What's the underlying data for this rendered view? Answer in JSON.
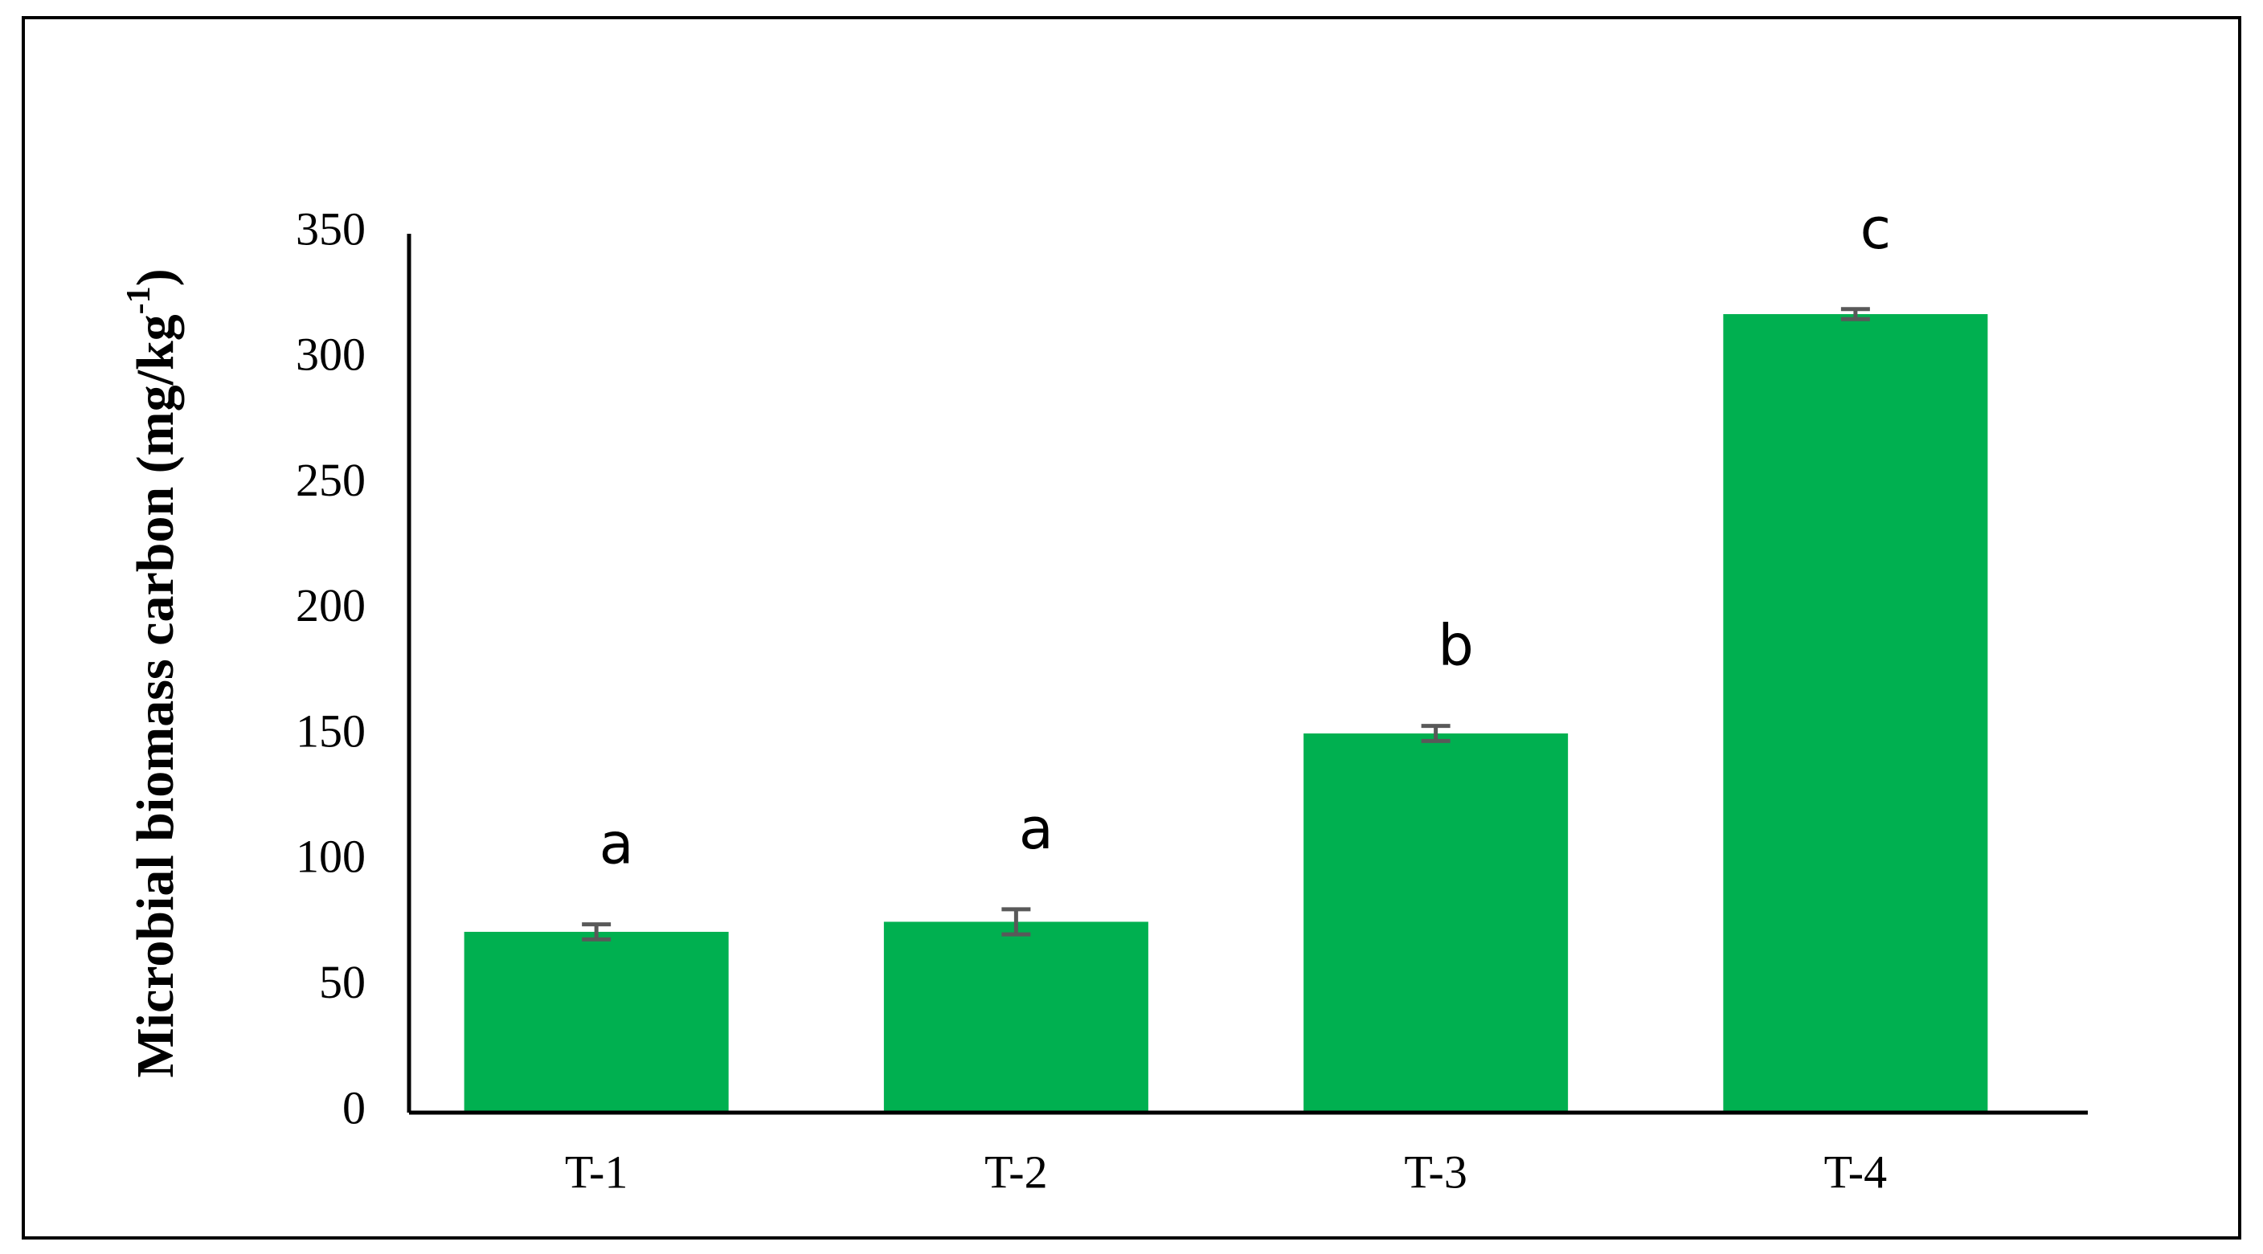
{
  "chart_data": {
    "type": "bar",
    "y_label": {
      "text": "Microbial biomass carbon (mg/kg",
      "superscript": "-1",
      "close": ")"
    },
    "categories": [
      "T-1",
      "T-2",
      "T-3",
      "T-4"
    ],
    "values": [
      72,
      76,
      151,
      318
    ],
    "errors": [
      3,
      5,
      3,
      2
    ],
    "annotations": [
      "a",
      "a",
      "b",
      "c"
    ],
    "color": "#00b050",
    "error_color": "#595959",
    "ylim": [
      0,
      350
    ],
    "yticks": [
      0,
      50,
      100,
      150,
      200,
      250,
      300,
      350
    ],
    "grid": false
  }
}
